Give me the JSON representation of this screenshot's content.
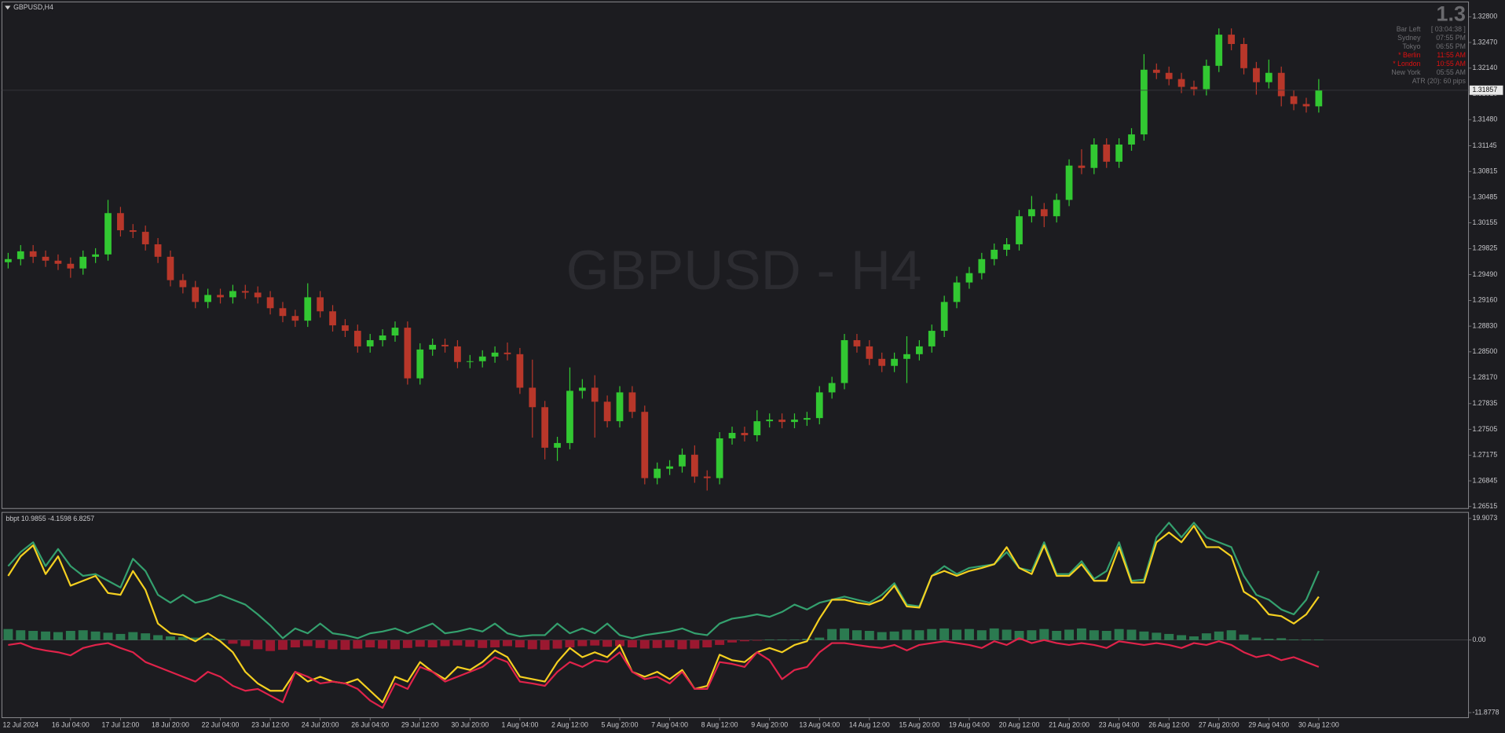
{
  "chart_data": [
    {
      "type": "candlestick",
      "title": "GBPUSD,H4",
      "watermark": "GBPUSD - H4",
      "up_color": "#32c832",
      "down_color": "#b8372a",
      "xlim": [
        -0.5,
        117
      ],
      "ylim": [
        1.2649,
        1.3299
      ],
      "xticks": [
        {
          "value": 1,
          "label": "12 Jul 2024"
        },
        {
          "value": 5,
          "label": "16 Jul 04:00"
        },
        {
          "value": 9,
          "label": "17 Jul 12:00"
        },
        {
          "value": 13,
          "label": "18 Jul 20:00"
        },
        {
          "value": 17,
          "label": "22 Jul 04:00"
        },
        {
          "value": 21,
          "label": "23 Jul 12:00"
        },
        {
          "value": 25,
          "label": "24 Jul 20:00"
        },
        {
          "value": 29,
          "label": "26 Jul 04:00"
        },
        {
          "value": 33,
          "label": "29 Jul 12:00"
        },
        {
          "value": 37,
          "label": "30 Jul 20:00"
        },
        {
          "value": 41,
          "label": "1 Aug 04:00"
        },
        {
          "value": 45,
          "label": "2 Aug 12:00"
        },
        {
          "value": 49,
          "label": "5 Aug 20:00"
        },
        {
          "value": 53,
          "label": "7 Aug 04:00"
        },
        {
          "value": 57,
          "label": "8 Aug 12:00"
        },
        {
          "value": 61,
          "label": "9 Aug 20:00"
        },
        {
          "value": 65,
          "label": "13 Aug 04:00"
        },
        {
          "value": 69,
          "label": "14 Aug 12:00"
        },
        {
          "value": 73,
          "label": "15 Aug 20:00"
        },
        {
          "value": 77,
          "label": "19 Aug 04:00"
        },
        {
          "value": 81,
          "label": "20 Aug 12:00"
        },
        {
          "value": 85,
          "label": "21 Aug 20:00"
        },
        {
          "value": 89,
          "label": "23 Aug 04:00"
        },
        {
          "value": 93,
          "label": "26 Aug 12:00"
        },
        {
          "value": 97,
          "label": "27 Aug 20:00"
        },
        {
          "value": 101,
          "label": "29 Aug 04:00"
        },
        {
          "value": 105,
          "label": "30 Aug 12:00"
        }
      ],
      "yticks": [
        {
          "value": 1.328,
          "label": "1.32800"
        },
        {
          "value": 1.3247,
          "label": "1.32470"
        },
        {
          "value": 1.3214,
          "label": "1.32140"
        },
        {
          "value": 1.3181,
          "label": "1.31810"
        },
        {
          "value": 1.3148,
          "label": "1.31480"
        },
        1.31145,
        1.30815,
        1.30485,
        1.30155,
        1.29825,
        {
          "value": 1.2949,
          "label": "1.29490"
        },
        {
          "value": 1.2916,
          "label": "1.29160"
        },
        {
          "value": 1.2883,
          "label": "1.28830"
        },
        {
          "value": 1.285,
          "label": "1.28500"
        },
        {
          "value": 1.2817,
          "label": "1.28170"
        },
        1.27835,
        1.27505,
        1.27175,
        1.26845,
        1.26515
      ],
      "last_price": {
        "value": 1.31857,
        "label": "1.31857"
      },
      "open": [
        1.2965,
        1.2969,
        1.2979,
        1.2972,
        1.2967,
        1.2963,
        1.2957,
        1.2972,
        1.2975,
        1.3028,
        1.3006,
        1.3004,
        1.2988,
        1.2972,
        1.2942,
        1.2933,
        1.2914,
        1.2923,
        1.292,
        1.2928,
        1.2926,
        1.292,
        1.2906,
        1.2896,
        1.289,
        1.292,
        1.2902,
        1.2884,
        1.2877,
        1.2857,
        1.2865,
        1.2871,
        1.2881,
        1.2816,
        1.2853,
        1.2859,
        1.2857,
        1.2837,
        1.2838,
        1.2844,
        1.2849,
        1.2847,
        1.2804,
        1.2779,
        1.2727,
        1.2733,
        1.28,
        1.2804,
        1.2786,
        1.2761,
        1.2798,
        1.2773,
        1.2688,
        1.27,
        1.2703,
        1.2718,
        1.269,
        1.2688,
        1.2739,
        1.2746,
        1.2743,
        1.2761,
        1.2763,
        1.276,
        1.2763,
        1.2765,
        1.2798,
        1.281,
        1.2865,
        1.2857,
        1.2841,
        1.2832,
        1.2841,
        1.2847,
        1.2857,
        1.2877,
        1.2914,
        1.2939,
        1.2951,
        1.2969,
        1.2981,
        1.2988,
        1.3024,
        1.3033,
        1.3024,
        1.3045,
        1.3089,
        1.3086,
        1.3116,
        1.3094,
        1.3116,
        1.3129,
        1.3212,
        1.3208,
        1.32,
        1.319,
        1.3187,
        1.3217,
        1.3257,
        1.3245,
        1.3214,
        1.3196,
        1.3208,
        1.3178,
        1.3168,
        1.3165
      ],
      "high": [
        1.2977,
        1.2987,
        1.2987,
        1.298,
        1.2975,
        1.2971,
        1.298,
        1.2983,
        1.3045,
        1.3036,
        1.3014,
        1.3012,
        1.2996,
        1.298,
        1.295,
        1.2941,
        1.2931,
        1.2931,
        1.2936,
        1.2936,
        1.2934,
        1.2928,
        1.2914,
        1.2904,
        1.2938,
        1.2928,
        1.291,
        1.2892,
        1.2885,
        1.2873,
        1.2879,
        1.2889,
        1.2889,
        1.2861,
        1.2867,
        1.2867,
        1.2865,
        1.2846,
        1.2852,
        1.2857,
        1.2862,
        1.2855,
        1.284,
        1.2787,
        1.2741,
        1.283,
        1.2815,
        1.282,
        1.2794,
        1.2806,
        1.2806,
        1.2781,
        1.2708,
        1.2711,
        1.2726,
        1.273,
        1.2698,
        1.2747,
        1.2754,
        1.2754,
        1.2775,
        1.2771,
        1.2771,
        1.2771,
        1.2773,
        1.2806,
        1.2818,
        1.2873,
        1.2873,
        1.2865,
        1.2849,
        1.2849,
        1.287,
        1.2865,
        1.2885,
        1.2922,
        1.2947,
        1.2959,
        1.2977,
        1.2989,
        1.2996,
        1.3032,
        1.305,
        1.3041,
        1.3053,
        1.3097,
        1.311,
        1.3124,
        1.3124,
        1.3124,
        1.3137,
        1.3232,
        1.322,
        1.3216,
        1.3208,
        1.3198,
        1.3225,
        1.3265,
        1.3265,
        1.3253,
        1.3222,
        1.3225,
        1.3216,
        1.3186,
        1.3176,
        1.32
      ],
      "low": [
        1.2957,
        1.2961,
        1.2964,
        1.2959,
        1.2955,
        1.2945,
        1.2949,
        1.2964,
        1.2967,
        1.2998,
        1.2996,
        1.298,
        1.2964,
        1.2934,
        1.2925,
        1.2906,
        1.2906,
        1.2912,
        1.2912,
        1.2918,
        1.2912,
        1.2898,
        1.2888,
        1.2882,
        1.2882,
        1.2894,
        1.2876,
        1.2869,
        1.2849,
        1.2849,
        1.2857,
        1.2863,
        1.2808,
        1.2808,
        1.2845,
        1.2849,
        1.2829,
        1.2829,
        1.283,
        1.2836,
        1.2839,
        1.2796,
        1.274,
        1.2712,
        1.271,
        1.2725,
        1.279,
        1.274,
        1.2753,
        1.2753,
        1.2765,
        1.268,
        1.268,
        1.2692,
        1.2695,
        1.2682,
        1.2672,
        1.268,
        1.2731,
        1.2735,
        1.2735,
        1.2753,
        1.2752,
        1.2752,
        1.2755,
        1.2757,
        1.279,
        1.2802,
        1.2849,
        1.2833,
        1.2824,
        1.2824,
        1.281,
        1.2839,
        1.2849,
        1.2869,
        1.2906,
        1.2931,
        1.2943,
        1.2961,
        1.2973,
        1.298,
        1.3016,
        1.301,
        1.3016,
        1.3037,
        1.3078,
        1.3078,
        1.3086,
        1.3086,
        1.3108,
        1.3121,
        1.32,
        1.3192,
        1.3182,
        1.3179,
        1.3179,
        1.3209,
        1.3237,
        1.3206,
        1.318,
        1.3188,
        1.3165,
        1.316,
        1.3157,
        1.3157
      ],
      "close": [
        1.2969,
        1.2979,
        1.2972,
        1.2967,
        1.2963,
        1.2957,
        1.2972,
        1.2975,
        1.3028,
        1.3006,
        1.3004,
        1.2988,
        1.2972,
        1.2942,
        1.2933,
        1.2914,
        1.2923,
        1.292,
        1.2928,
        1.2926,
        1.292,
        1.2906,
        1.2896,
        1.289,
        1.292,
        1.2902,
        1.2884,
        1.2877,
        1.2857,
        1.2865,
        1.2871,
        1.2881,
        1.2816,
        1.2853,
        1.2859,
        1.2857,
        1.2837,
        1.2838,
        1.2844,
        1.2849,
        1.2847,
        1.2804,
        1.2779,
        1.2727,
        1.2733,
        1.28,
        1.2804,
        1.2786,
        1.2761,
        1.2798,
        1.2773,
        1.2688,
        1.27,
        1.2703,
        1.2718,
        1.269,
        1.2688,
        1.2739,
        1.2746,
        1.2743,
        1.2761,
        1.2763,
        1.276,
        1.2763,
        1.2765,
        1.2798,
        1.281,
        1.2865,
        1.2857,
        1.2841,
        1.2832,
        1.2841,
        1.2847,
        1.2857,
        1.2877,
        1.2914,
        1.2939,
        1.2951,
        1.2969,
        1.2981,
        1.2988,
        1.3024,
        1.3033,
        1.3024,
        1.3045,
        1.3089,
        1.3086,
        1.3116,
        1.3094,
        1.3116,
        1.3129,
        1.3212,
        1.3208,
        1.32,
        1.319,
        1.3187,
        1.3217,
        1.3257,
        1.3245,
        1.3214,
        1.3196,
        1.3208,
        1.3178,
        1.3168,
        1.3165,
        1.3186
      ],
      "info": {
        "big": "1.3",
        "rows": [
          {
            "label": "Bar Left",
            "value": "[ 03:04:38 ]",
            "color": "#6f6f73"
          },
          {
            "label": "Sydney",
            "value": "07:55 PM",
            "color": "#6f6f73"
          },
          {
            "label": "Tokyo",
            "value": "06:55 PM",
            "color": "#6f6f73"
          },
          {
            "label": "* Berlin",
            "value": "11:55 AM",
            "color": "#e01010"
          },
          {
            "label": "* London",
            "value": "10:55 AM",
            "color": "#e01010"
          },
          {
            "label": "New York",
            "value": "05:55 AM",
            "color": "#6f6f73"
          },
          {
            "label": "ATR (20): 60 pips",
            "value": null,
            "color": "#6f6f73"
          }
        ]
      }
    },
    {
      "type": "line",
      "title": "bbpt 10.9855 -4.1598 6.8257",
      "xlim": [
        -0.5,
        117
      ],
      "ylim": [
        -12.7,
        20.9
      ],
      "yticks": [
        19.9073,
        {
          "value": 0,
          "label": "0.00"
        },
        -11.8778
      ],
      "series": [
        {
          "color": "#34a06e",
          "values": [
            12.1,
            14.4,
            16.0,
            12.1,
            14.9,
            12.1,
            10.5,
            10.8,
            9.7,
            8.6,
            13.3,
            11.3,
            7.4,
            6.1,
            7.4,
            6.1,
            6.6,
            7.4,
            6.6,
            5.8,
            4.2,
            2.4,
            0.3,
            1.9,
            1.1,
            2.7,
            1.1,
            0.8,
            0.3,
            1.1,
            1.4,
            1.9,
            1.1,
            1.9,
            2.7,
            1.1,
            1.4,
            1.9,
            1.4,
            2.7,
            1.1,
            0.6,
            0.8,
            0.8,
            2.7,
            1.1,
            1.9,
            1.1,
            2.7,
            0.8,
            0.3,
            0.8,
            1.1,
            1.4,
            1.9,
            1.1,
            0.8,
            2.7,
            3.5,
            3.8,
            4.2,
            3.8,
            4.6,
            5.8,
            5.0,
            6.1,
            6.6,
            7.1,
            6.6,
            6.1,
            7.4,
            9.3,
            5.8,
            5.5,
            10.5,
            12.1,
            10.8,
            11.8,
            12.1,
            12.4,
            14.4,
            11.8,
            11.3,
            16.0,
            10.8,
            10.8,
            12.9,
            10.0,
            11.3,
            16.0,
            9.7,
            9.9,
            16.8,
            19.2,
            16.8,
            19.2,
            16.8,
            16.0,
            15.2,
            10.5,
            7.4,
            6.6,
            5.0,
            4.2,
            6.6,
            11.3
          ]
        },
        {
          "color": "#f5d020",
          "values": [
            10.5,
            13.7,
            15.5,
            10.8,
            13.7,
            8.9,
            9.7,
            10.5,
            7.7,
            7.4,
            11.3,
            8.2,
            2.7,
            1.1,
            0.8,
            -0.2,
            1.1,
            -0.2,
            -2.0,
            -5.2,
            -7.1,
            -8.3,
            -8.3,
            -5.2,
            -6.8,
            -6.0,
            -6.8,
            -7.1,
            -6.4,
            -8.3,
            -10.2,
            -6.0,
            -6.8,
            -3.6,
            -5.2,
            -6.4,
            -4.4,
            -4.9,
            -3.6,
            -1.7,
            -2.8,
            -6.0,
            -6.4,
            -6.8,
            -3.6,
            -1.3,
            -2.8,
            -2.0,
            -2.8,
            -0.8,
            -5.2,
            -6.0,
            -5.2,
            -6.4,
            -4.9,
            -8.0,
            -7.5,
            -2.4,
            -3.3,
            -3.6,
            -2.0,
            -1.3,
            -2.0,
            -0.8,
            -0.2,
            3.5,
            6.6,
            6.6,
            6.1,
            5.8,
            6.6,
            8.9,
            5.5,
            5.3,
            10.5,
            11.3,
            10.5,
            11.3,
            11.8,
            12.4,
            15.2,
            11.8,
            10.8,
            15.5,
            10.5,
            10.5,
            12.4,
            9.7,
            9.7,
            15.2,
            9.4,
            9.4,
            16.0,
            17.6,
            16.0,
            18.7,
            15.2,
            15.2,
            13.7,
            7.9,
            6.6,
            4.2,
            3.9,
            2.7,
            4.2,
            7.1
          ]
        },
        {
          "color": "#e0234a",
          "values": [
            -0.8,
            -0.5,
            -1.3,
            -1.7,
            -2.0,
            -2.5,
            -1.3,
            -0.8,
            -0.5,
            -1.3,
            -2.0,
            -3.6,
            -4.4,
            -5.2,
            -6.0,
            -6.8,
            -5.2,
            -6.0,
            -7.5,
            -8.3,
            -8.0,
            -9.1,
            -10.2,
            -5.2,
            -6.0,
            -7.1,
            -6.8,
            -7.1,
            -8.0,
            -9.9,
            -11.1,
            -7.1,
            -8.0,
            -4.4,
            -5.2,
            -6.8,
            -6.0,
            -5.2,
            -4.4,
            -2.8,
            -3.6,
            -6.8,
            -7.1,
            -7.5,
            -5.2,
            -3.6,
            -4.4,
            -3.3,
            -3.6,
            -2.0,
            -5.2,
            -6.4,
            -6.0,
            -7.1,
            -5.2,
            -8.0,
            -8.0,
            -3.6,
            -3.9,
            -4.4,
            -2.0,
            -3.3,
            -6.4,
            -4.9,
            -4.4,
            -2.0,
            -0.5,
            -0.5,
            -0.8,
            -1.1,
            -1.3,
            -0.8,
            -1.7,
            -0.8,
            -0.5,
            -0.2,
            -0.5,
            -0.8,
            -1.3,
            -0.2,
            -0.8,
            0.3,
            -0.5,
            0.0,
            -0.5,
            -0.8,
            -0.5,
            -0.8,
            -1.3,
            -0.2,
            -0.5,
            -0.8,
            -0.5,
            -0.8,
            -1.3,
            -0.5,
            -0.8,
            -0.2,
            -0.8,
            -2.0,
            -2.8,
            -2.4,
            -3.3,
            -2.8,
            -3.6,
            -4.4
          ]
        }
      ],
      "bars": {
        "up_color": "#2b7a50",
        "down_color": "#9b1830",
        "values": [
          1.8,
          1.6,
          1.5,
          1.4,
          1.3,
          1.5,
          1.6,
          1.4,
          1.2,
          1.0,
          1.3,
          1.1,
          0.8,
          0.6,
          0.5,
          0.4,
          0.3,
          0.2,
          -0.6,
          -1.0,
          -1.5,
          -1.8,
          -1.6,
          -1.2,
          -1.0,
          -1.3,
          -1.5,
          -1.6,
          -1.4,
          -1.2,
          -1.4,
          -1.5,
          -1.3,
          -1.1,
          -1.2,
          -1.0,
          -0.9,
          -1.1,
          -1.3,
          -1.2,
          -1.0,
          -1.2,
          -1.5,
          -1.6,
          -1.4,
          -1.2,
          -1.0,
          -0.9,
          -1.1,
          -1.0,
          -1.2,
          -1.4,
          -1.3,
          -1.2,
          -1.5,
          -1.4,
          -1.2,
          -0.8,
          -0.4,
          -0.2,
          -0.1,
          0.1,
          0.1,
          0.1,
          0.2,
          0.4,
          1.8,
          1.9,
          1.6,
          1.5,
          1.3,
          1.4,
          1.7,
          1.6,
          1.8,
          1.9,
          1.7,
          1.8,
          1.6,
          1.9,
          1.7,
          1.5,
          1.6,
          1.8,
          1.5,
          1.7,
          1.9,
          1.6,
          1.5,
          1.8,
          1.7,
          1.4,
          1.2,
          1.0,
          0.8,
          0.6,
          1.1,
          1.4,
          1.6,
          0.9,
          0.4,
          0.2,
          0.3,
          0.1,
          0.1,
          0.1
        ]
      }
    }
  ]
}
